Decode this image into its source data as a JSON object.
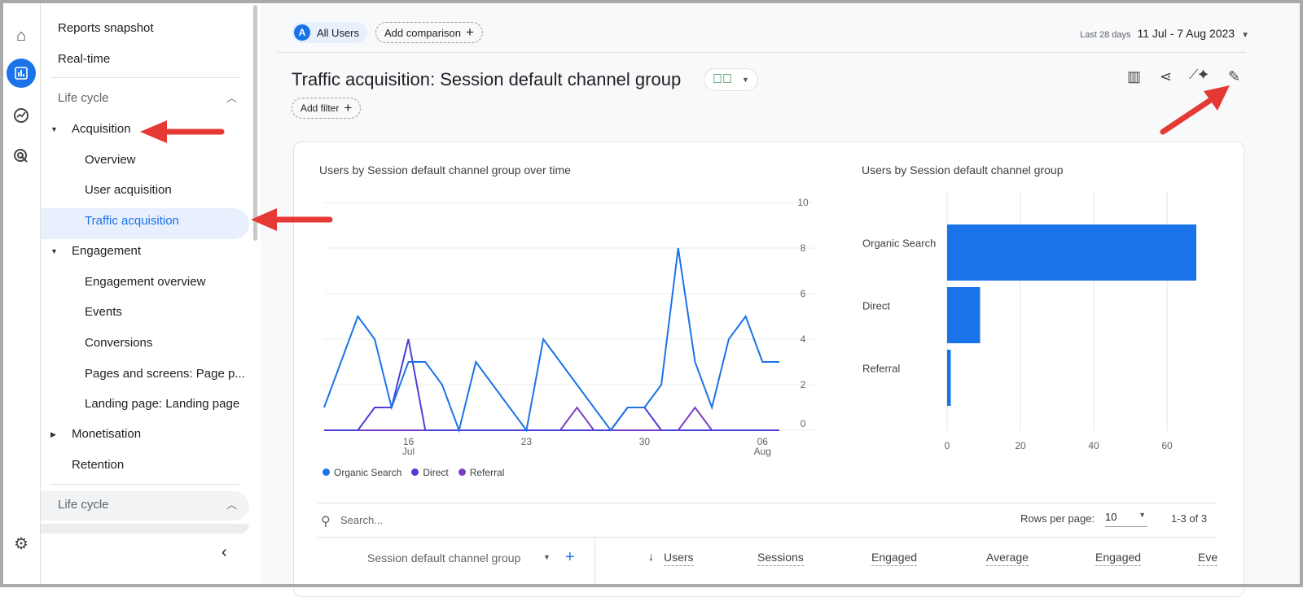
{
  "rail": {
    "items": [
      "home-icon",
      "reports-icon",
      "explore-icon",
      "advertising-icon",
      "settings-icon"
    ]
  },
  "sidebar": {
    "top": [
      "Reports snapshot",
      "Real-time"
    ],
    "section": "Life cycle",
    "acquisition": "Acquisition",
    "acq_items": [
      "Overview",
      "User acquisition",
      "Traffic acquisition"
    ],
    "engagement": "Engagement",
    "eng_items": [
      "Engagement overview",
      "Events",
      "Conversions",
      "Pages and screens: Page p...",
      "Landing page: Landing page"
    ],
    "monetisation": "Monetisation",
    "retention": "Retention",
    "section2": "Life cycle",
    "collapse_icon": "chevron-left-icon"
  },
  "header": {
    "segment_badge": "A",
    "segment": "All Users",
    "add_comparison": "Add comparison",
    "date_label": "Last 28 days",
    "date_range": "11 Jul - 7 Aug 2023",
    "title": "Traffic acquisition: Session default channel group",
    "add_filter": "Add filter"
  },
  "colors": {
    "organic": "#1a73e8",
    "direct": "#4a3fd6",
    "referral": "#7b3fc4",
    "annotation": "#e53935"
  },
  "chart_data": [
    {
      "type": "line",
      "title": "Users by Session default channel group over time",
      "x_ticks": [
        {
          "day": 5,
          "label": "16",
          "sub": "Jul"
        },
        {
          "day": 12,
          "label": "23",
          "sub": ""
        },
        {
          "day": 19,
          "label": "30",
          "sub": ""
        },
        {
          "day": 26,
          "label": "06",
          "sub": "Aug"
        }
      ],
      "x_range": [
        "11 Jul",
        "7 Aug"
      ],
      "ylim": [
        0,
        10
      ],
      "y_ticks": [
        0,
        2,
        4,
        6,
        8,
        10
      ],
      "grid": true,
      "legend": "bottom-left",
      "series": [
        {
          "name": "Organic Search",
          "color": "#1a73e8",
          "values": [
            1,
            3,
            5,
            4,
            1,
            3,
            3,
            2,
            0,
            3,
            2,
            1,
            0,
            4,
            3,
            2,
            1,
            0,
            1,
            1,
            2,
            8,
            3,
            1,
            4,
            5,
            3,
            3
          ]
        },
        {
          "name": "Direct",
          "color": "#4a3fd6",
          "values": [
            0,
            0,
            0,
            1,
            1,
            4,
            0,
            0,
            0,
            0,
            0,
            0,
            0,
            0,
            0,
            0,
            0,
            0,
            1,
            1,
            0,
            0,
            0,
            0,
            0,
            0,
            0,
            0
          ]
        },
        {
          "name": "Referral",
          "color": "#7b3fc4",
          "values": [
            0,
            0,
            0,
            0,
            0,
            0,
            0,
            0,
            0,
            0,
            0,
            0,
            0,
            0,
            0,
            1,
            0,
            0,
            0,
            0,
            0,
            0,
            1,
            0,
            0,
            0,
            0,
            0
          ]
        }
      ]
    },
    {
      "type": "bar",
      "orientation": "horizontal",
      "title": "Users by Session default channel group",
      "categories": [
        "Organic Search",
        "Direct",
        "Referral"
      ],
      "values": [
        68,
        9,
        1
      ],
      "xlim": [
        0,
        70
      ],
      "x_ticks": [
        0,
        20,
        40,
        60
      ],
      "grid": true,
      "color": "#1a73e8"
    }
  ],
  "table": {
    "search_placeholder": "Search...",
    "rows_per_page_label": "Rows per page:",
    "rows_per_page": "10",
    "pagination": "1-3 of 3",
    "dimension": "Session default channel group",
    "columns": [
      "Users",
      "Sessions",
      "Engaged",
      "Average",
      "Engaged",
      "Eve"
    ]
  }
}
